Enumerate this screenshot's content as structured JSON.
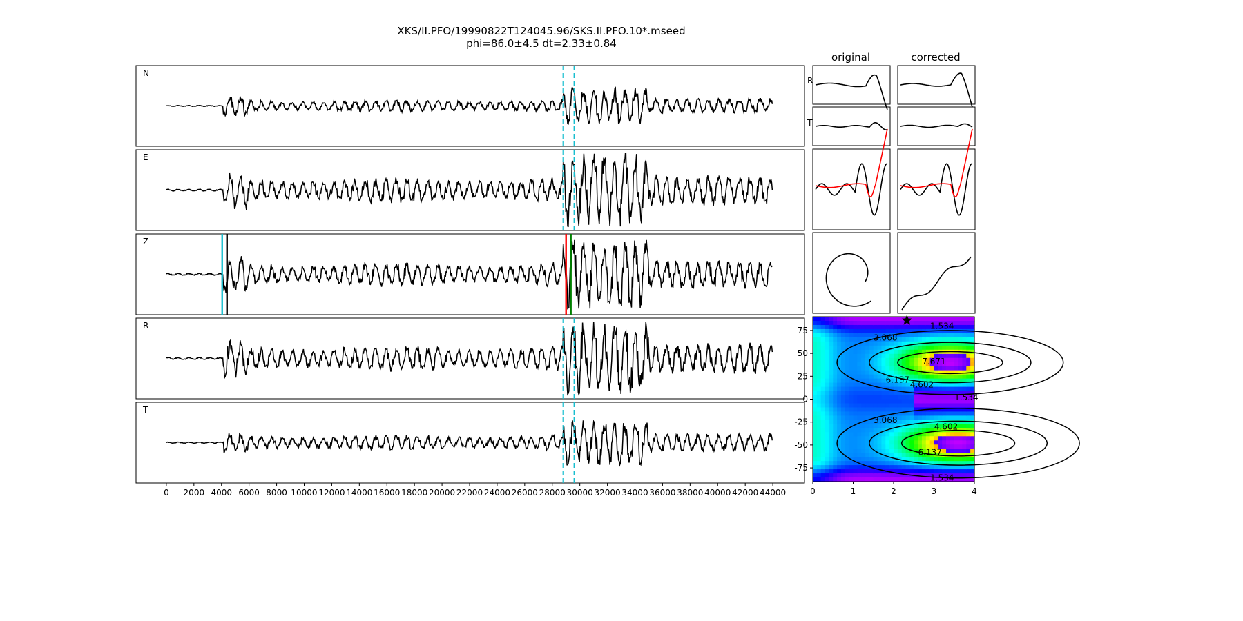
{
  "title": "XKS/II.PFO/19990822T124045.96/SKS.II.PFO.10*.mseed",
  "subtitle": "phi=86.0±4.5 dt=2.33±0.84",
  "column_titles": {
    "original": "original",
    "corrected": "corrected"
  },
  "chart_data": [
    {
      "type": "line",
      "name": "seismogram-traces",
      "channels": [
        "N",
        "E",
        "Z",
        "R",
        "T"
      ],
      "x_ticks": [
        0,
        2000,
        4000,
        6000,
        8000,
        10000,
        12000,
        14000,
        16000,
        18000,
        20000,
        22000,
        24000,
        26000,
        28000,
        30000,
        32000,
        34000,
        36000,
        38000,
        40000,
        42000,
        44000
      ],
      "xlim": [
        -2200,
        46300
      ],
      "data_extent": [
        0,
        44000
      ],
      "noise_onset": 4100,
      "window_markers": {
        "start": 28800,
        "end": 29600,
        "color": "#17becf",
        "style": "dashed",
        "channels": [
          "N",
          "E",
          "R",
          "T"
        ]
      },
      "pick_lines": [
        {
          "x": 4050,
          "color": "#17becf",
          "channel": "Z"
        },
        {
          "x": 4400,
          "color": "#000000",
          "channel": "Z"
        },
        {
          "x": 29000,
          "color": "#ff0000",
          "channel": "Z"
        },
        {
          "x": 29350,
          "color": "#008000",
          "channel": "Z"
        }
      ],
      "amplitudes": {
        "N": 0.45,
        "E": 0.9,
        "Z": 0.85,
        "R": 0.9,
        "T": 0.55
      }
    },
    {
      "type": "line",
      "name": "particle-panels",
      "row_labels": [
        "R",
        "T"
      ],
      "panels": [
        "original R",
        "original T",
        "corrected R",
        "corrected T",
        "original waveforms",
        "corrected waveforms",
        "original particle motion",
        "corrected particle motion"
      ],
      "series_colors": [
        "#000000",
        "#ff0000"
      ]
    },
    {
      "type": "heatmap",
      "name": "splitting-grid",
      "xlim": [
        0,
        4
      ],
      "ylim": [
        -90,
        90
      ],
      "x_ticks": [
        0,
        1,
        2,
        3,
        4
      ],
      "y_ticks": [
        -75,
        -50,
        -25,
        0,
        25,
        50,
        75
      ],
      "contour_levels": [
        1.534,
        3.068,
        4.602,
        6.137,
        7.671
      ],
      "contour_labels": [
        {
          "text": "1.534",
          "x": 3.2,
          "y": 80
        },
        {
          "text": "3.068",
          "x": 1.8,
          "y": 67
        },
        {
          "text": "7.671",
          "x": 3.0,
          "y": 41
        },
        {
          "text": "6.137",
          "x": 2.1,
          "y": 21
        },
        {
          "text": "4.602",
          "x": 2.7,
          "y": 16
        },
        {
          "text": "1.534",
          "x": 3.8,
          "y": 2
        },
        {
          "text": "3.068",
          "x": 1.8,
          "y": -23
        },
        {
          "text": "4.602",
          "x": 3.3,
          "y": -30
        },
        {
          "text": "6.137",
          "x": 2.9,
          "y": -58
        },
        {
          "text": "1.534",
          "x": 3.2,
          "y": -86
        }
      ],
      "best_estimate": {
        "dt": 2.33,
        "phi": 86.0,
        "marker": "star"
      }
    }
  ]
}
